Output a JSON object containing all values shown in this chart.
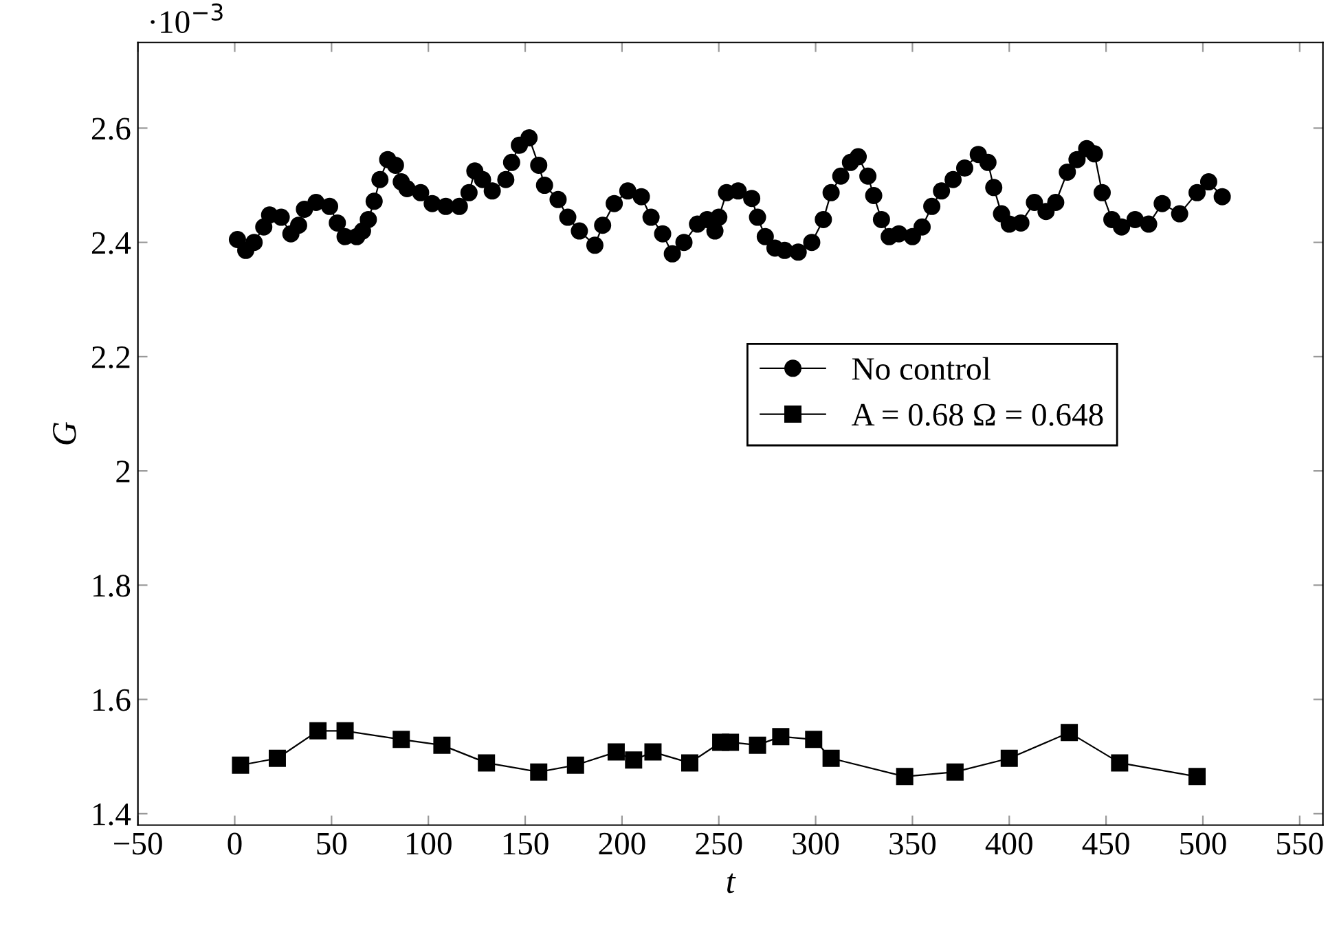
{
  "chart_data": {
    "type": "line",
    "xlabel": "t",
    "ylabel": "G",
    "line_style": "solid",
    "grid": false,
    "legend": "right",
    "xlim": [
      -50,
      562
    ],
    "ylim": [
      1.38,
      2.75
    ],
    "xticks": [
      {
        "value": -50,
        "label": "−50"
      },
      0,
      50,
      100,
      150,
      200,
      250,
      300,
      350,
      400,
      450,
      500,
      550
    ],
    "yticks": [
      1.4,
      1.6,
      1.8,
      2,
      2.2,
      2.4,
      2.6
    ],
    "annotations": [
      "·10$^{−3}$"
    ],
    "series": [
      {
        "name": "No control",
        "color": "#000000",
        "marker": "circle",
        "x": [
          1.4,
          5.7,
          10,
          15,
          18,
          24,
          29,
          33,
          36,
          42,
          49,
          53,
          57,
          63,
          66,
          69,
          72,
          75,
          79,
          83,
          86,
          89,
          96,
          102,
          109,
          116,
          121,
          124,
          128,
          133,
          140,
          143,
          147,
          152,
          157,
          160,
          167,
          172,
          178,
          186,
          190,
          196,
          203,
          210,
          215,
          221,
          226,
          232,
          239,
          244,
          248,
          250,
          254,
          260,
          267,
          270,
          274,
          279,
          284,
          291,
          298,
          304,
          308,
          313,
          318,
          322,
          327,
          330,
          334,
          338,
          343,
          350,
          355,
          360,
          365,
          371,
          377,
          384,
          389,
          392,
          396,
          400,
          406,
          413,
          419,
          424,
          430,
          435,
          440,
          444,
          448,
          453,
          458,
          465,
          472,
          479,
          488,
          497,
          503,
          510
        ],
        "values": [
          2.405,
          2.386,
          2.4,
          2.427,
          2.448,
          2.444,
          2.415,
          2.43,
          2.458,
          2.47,
          2.463,
          2.434,
          2.41,
          2.41,
          2.42,
          2.44,
          2.472,
          2.51,
          2.545,
          2.535,
          2.506,
          2.494,
          2.487,
          2.468,
          2.463,
          2.463,
          2.487,
          2.525,
          2.51,
          2.49,
          2.51,
          2.54,
          2.57,
          2.583,
          2.535,
          2.5,
          2.475,
          2.444,
          2.42,
          2.395,
          2.43,
          2.468,
          2.49,
          2.48,
          2.444,
          2.415,
          2.38,
          2.4,
          2.432,
          2.44,
          2.42,
          2.444,
          2.487,
          2.49,
          2.477,
          2.444,
          2.41,
          2.39,
          2.386,
          2.383,
          2.4,
          2.44,
          2.487,
          2.516,
          2.54,
          2.55,
          2.516,
          2.482,
          2.44,
          2.41,
          2.415,
          2.41,
          2.427,
          2.463,
          2.49,
          2.51,
          2.53,
          2.554,
          2.54,
          2.496,
          2.45,
          2.432,
          2.434,
          2.47,
          2.454,
          2.47,
          2.523,
          2.545,
          2.564,
          2.555,
          2.487,
          2.44,
          2.427,
          2.44,
          2.432,
          2.468,
          2.45,
          2.487,
          2.506,
          2.48
        ]
      },
      {
        "name": "A = 0.68 Ω = 0.648",
        "color": "#000000",
        "marker": "square",
        "x": [
          3,
          22,
          43,
          57,
          86,
          107,
          130,
          157,
          176,
          197,
          206,
          216,
          235,
          251,
          256,
          270,
          282,
          299,
          308,
          346,
          372,
          400,
          431,
          457,
          497
        ],
        "values": [
          1.485,
          1.497,
          1.545,
          1.545,
          1.53,
          1.52,
          1.489,
          1.473,
          1.485,
          1.508,
          1.494,
          1.508,
          1.489,
          1.525,
          1.525,
          1.52,
          1.535,
          1.53,
          1.497,
          1.465,
          1.473,
          1.497,
          1.542,
          1.489,
          1.465
        ]
      }
    ]
  }
}
